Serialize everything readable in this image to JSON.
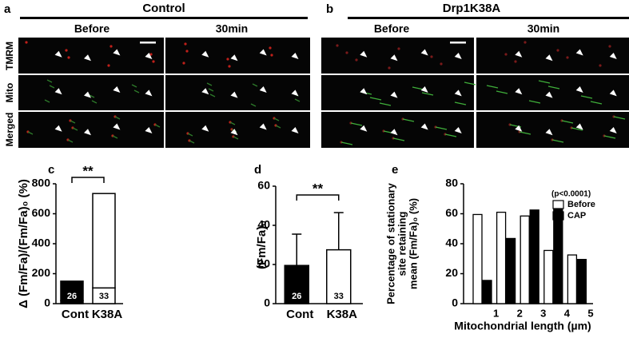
{
  "panels": {
    "a": {
      "label": "a",
      "title": "Control",
      "columns": [
        "Before",
        "30min"
      ],
      "rows": [
        "TMRM",
        "Mito",
        "Merged"
      ]
    },
    "b": {
      "label": "b",
      "title": "Drp1K38A",
      "columns": [
        "Before",
        "30min"
      ]
    }
  },
  "chart_data": [
    {
      "panel_label": "c",
      "type": "bar",
      "stacked": true,
      "y_label": "Δ (Fm/Fa)/(Fm/Fa)₀ (%)",
      "categories": [
        "Cont",
        "K38A"
      ],
      "bar_colors": [
        "#000000",
        "#ffffff"
      ],
      "series": [
        {
          "values": [
            20,
            105
          ]
        },
        {
          "values": [
            130,
            630
          ]
        }
      ],
      "n_labels": [
        "26",
        "33"
      ],
      "annotation": "**",
      "ylim": [
        0,
        800
      ],
      "yticks": [
        0,
        200,
        400,
        600,
        800
      ]
    },
    {
      "panel_label": "d",
      "type": "bar",
      "y_label": "(Fm/Fa)₀",
      "categories": [
        "Cont",
        "K38A"
      ],
      "bar_colors": [
        "#000000",
        "#ffffff"
      ],
      "values": [
        19.5,
        27.5
      ],
      "errors": [
        16,
        19
      ],
      "n_labels": [
        "26",
        "33"
      ],
      "annotation": "**",
      "ylim": [
        0,
        60
      ],
      "yticks": [
        0,
        20,
        40,
        60
      ]
    },
    {
      "panel_label": "e",
      "type": "grouped_bar",
      "y_label": [
        "Percentage of stationary",
        "site retaining",
        "mean (Fm/Fa)₀ (%)"
      ],
      "x_label": "Mitochondrial length (µm)",
      "categories": [
        "1",
        "2",
        "3",
        "4",
        "5"
      ],
      "series": [
        {
          "name": "Before",
          "color": "#ffffff",
          "values": [
            59.5,
            61,
            58.5,
            35.5,
            32.5
          ]
        },
        {
          "name": "CAP",
          "color": "#000000",
          "values": [
            15.5,
            43.5,
            62.5,
            63,
            29.5
          ]
        }
      ],
      "legend_note": "(p<0.0001)",
      "ylim": [
        0,
        80
      ],
      "yticks": [
        0,
        20,
        40,
        60,
        80
      ]
    }
  ]
}
